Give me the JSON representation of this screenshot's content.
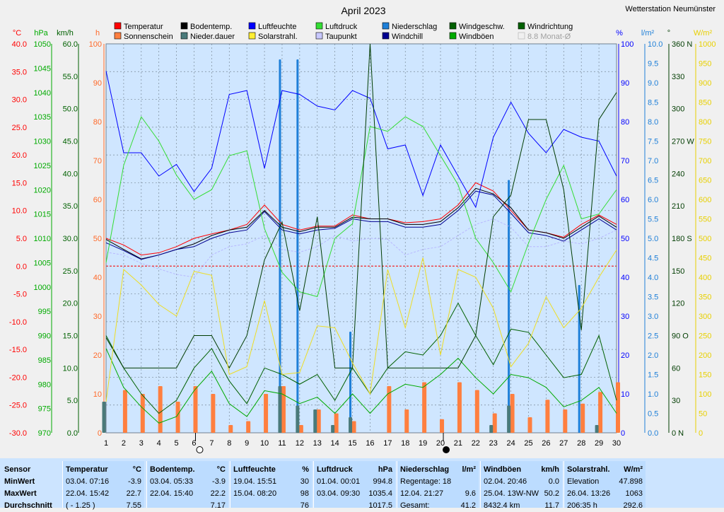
{
  "chart_data": {
    "type": "line",
    "title": "April 2023",
    "station": "Wetterstation Neumünster",
    "x": [
      1,
      2,
      3,
      4,
      5,
      6,
      7,
      8,
      9,
      10,
      11,
      12,
      13,
      14,
      15,
      16,
      17,
      18,
      19,
      20,
      21,
      22,
      23,
      24,
      25,
      26,
      27,
      28,
      29,
      30
    ],
    "xlim": [
      1,
      30
    ],
    "axes": {
      "temperature": {
        "label": "°C",
        "ticks": [
          "40.0",
          "35.0",
          "30.0",
          "25.0",
          "20.0",
          "15.0",
          "10.0",
          "5.0",
          "0.0",
          "-5.0",
          "-10.0",
          "-15.0",
          "-20.0",
          "-25.0",
          "-30.0"
        ],
        "range": [
          -30,
          40
        ],
        "color": "#ff0000"
      },
      "pressure": {
        "label": "hPa",
        "ticks": [
          "1050",
          "1045",
          "1040",
          "1035",
          "1030",
          "1025",
          "1020",
          "1015",
          "1010",
          "1005",
          "1000",
          "995",
          "990",
          "985",
          "980",
          "975",
          "970"
        ],
        "range": [
          970,
          1050
        ],
        "color": "#00aa00"
      },
      "wind": {
        "label": "km/h",
        "ticks": [
          "60.0",
          "55.0",
          "50.0",
          "45.0",
          "40.0",
          "35.0",
          "30.0",
          "25.0",
          "20.0",
          "15.0",
          "10.0",
          "5.0",
          "0.0"
        ],
        "range": [
          0,
          60
        ],
        "color": "#006000"
      },
      "sunshine": {
        "label": "h",
        "ticks": [
          "100",
          "90",
          "80",
          "70",
          "60",
          "50",
          "40",
          "30",
          "20",
          "10",
          "0"
        ],
        "range": [
          0,
          100
        ],
        "color": "#ff6a2a"
      },
      "humidity": {
        "label": "%",
        "ticks": [
          "100",
          "90",
          "80",
          "70",
          "60",
          "50",
          "40",
          "30",
          "20",
          "10",
          "0"
        ],
        "range": [
          0,
          100
        ],
        "color": "#0000ff"
      },
      "precip": {
        "label": "l/m²",
        "ticks": [
          "10.0",
          "9.5",
          "9.0",
          "8.5",
          "8.0",
          "7.5",
          "7.0",
          "6.5",
          "6.0",
          "5.5",
          "5.0",
          "4.5",
          "4.0",
          "3.5",
          "3.0",
          "2.5",
          "2.0",
          "1.5",
          "1.0",
          "0.5",
          "0.0"
        ],
        "range": [
          0,
          10
        ],
        "color": "#1e7fd8"
      },
      "direction": {
        "label": "°",
        "ticks": [
          "360 N",
          "330",
          "300",
          "270 W",
          "240",
          "210",
          "180 S",
          "150",
          "120",
          "90  O",
          "60",
          "30",
          "0   N"
        ],
        "range": [
          0,
          360
        ],
        "color": "#003c00"
      },
      "solar": {
        "label": "W/m²",
        "ticks": [
          "1000",
          "950",
          "900",
          "850",
          "800",
          "750",
          "700",
          "650",
          "600",
          "550",
          "500",
          "450",
          "400",
          "350",
          "300",
          "250",
          "200",
          "150",
          "100",
          "50",
          "0"
        ],
        "range": [
          0,
          1000
        ],
        "color": "#e8d000"
      }
    },
    "legend": [
      {
        "name": "Temperatur",
        "color": "#ff0000"
      },
      {
        "name": "Bodentemp.",
        "color": "#000000"
      },
      {
        "name": "Luftfeuchte",
        "color": "#0000ff"
      },
      {
        "name": "Luftdruck",
        "color": "#33dd33"
      },
      {
        "name": "Niederschlag",
        "color": "#1e7fd8"
      },
      {
        "name": "Windgeschw.",
        "color": "#006000"
      },
      {
        "name": "Windrichtung",
        "color": "#006000"
      },
      {
        "name": "Sonnenschein",
        "color": "#ff7f3f"
      },
      {
        "name": "Nieder.dauer",
        "color": "#4a7a7a"
      },
      {
        "name": "Solarstrahl.",
        "color": "#ffee33"
      },
      {
        "name": "Taupunkt",
        "color": "#c8c8ff"
      },
      {
        "name": "Windchill",
        "color": "#000090"
      },
      {
        "name": "Windböen",
        "color": "#00aa00"
      },
      {
        "name": "8.8 Monat-Ø",
        "color": "#b0b0b0"
      }
    ],
    "moon_phases": [
      {
        "day": 6,
        "phase": "full"
      },
      {
        "day": 20,
        "phase": "new"
      }
    ],
    "series": [
      {
        "name": "Temperatur",
        "axis": "temperature",
        "color": "#ff0000",
        "values": [
          5.0,
          3.8,
          2.0,
          2.4,
          3.5,
          5.0,
          5.8,
          6.5,
          7.5,
          11.0,
          7.5,
          6.5,
          7.2,
          7.2,
          9.2,
          8.5,
          8.5,
          7.8,
          8.0,
          8.5,
          11.0,
          15.0,
          13.5,
          10.0,
          6.5,
          6.0,
          5.2,
          7.5,
          9.2,
          7.5
        ]
      },
      {
        "name": "Bodentemp.",
        "axis": "temperature",
        "color": "#000000",
        "values": [
          4.8,
          3.0,
          1.3,
          2.0,
          3.0,
          4.0,
          5.5,
          6.5,
          7.0,
          10.0,
          7.0,
          6.2,
          7.0,
          7.0,
          8.8,
          8.5,
          8.5,
          7.5,
          7.5,
          8.0,
          10.5,
          14.0,
          13.0,
          10.5,
          6.5,
          6.0,
          5.0,
          7.0,
          9.0,
          7.0
        ]
      },
      {
        "name": "Windchill",
        "axis": "temperature",
        "color": "#000090",
        "values": [
          4.2,
          2.8,
          1.2,
          2.0,
          3.0,
          3.5,
          5.0,
          6.0,
          6.5,
          9.8,
          6.5,
          5.8,
          6.5,
          6.8,
          8.5,
          8.0,
          8.0,
          7.0,
          7.0,
          7.5,
          10.0,
          13.5,
          12.8,
          9.5,
          6.0,
          5.5,
          4.5,
          6.5,
          8.5,
          6.5
        ]
      },
      {
        "name": "Taupunkt",
        "axis": "temperature",
        "color": "#b8b8ff",
        "values": [
          2.5,
          2.0,
          0.5,
          -0.5,
          -1.5,
          -2.0,
          2.0,
          3.5,
          4.0,
          5.5,
          3.0,
          2.5,
          3.5,
          5.5,
          4.5,
          5.0,
          4.8,
          2.0,
          3.0,
          3.5,
          5.5,
          7.5,
          8.5,
          7.0,
          3.5,
          3.5,
          4.5,
          4.0,
          5.0,
          6.5
        ]
      },
      {
        "name": "Luftfeuchte",
        "axis": "humidity",
        "color": "#0000ff",
        "values": [
          93,
          72,
          72,
          66,
          69,
          62,
          68,
          87,
          88,
          68,
          88,
          87,
          84,
          83,
          88,
          86,
          73,
          74,
          61,
          74,
          66,
          58,
          76,
          85,
          77,
          72,
          78,
          76,
          75,
          66
        ]
      },
      {
        "name": "Luftdruck",
        "axis": "pressure",
        "color": "#33dd33",
        "values": [
          1005,
          1025,
          1035,
          1030,
          1023,
          1018,
          1020,
          1027,
          1028,
          1012,
          1003,
          999,
          998,
          1010,
          1013,
          1033,
          1032,
          1035,
          1033,
          1027,
          1021,
          1010,
          1005,
          999,
          1009,
          1018,
          1025,
          1014,
          1015,
          1020
        ]
      },
      {
        "name": "Windböen",
        "axis": "wind",
        "color": "#006000",
        "values": [
          15.0,
          10.0,
          6.0,
          3.0,
          5.0,
          10.0,
          13.0,
          8.0,
          4.5,
          10.0,
          9.0,
          7.5,
          9.0,
          5.0,
          10.0,
          6.0,
          10.0,
          12.5,
          12.0,
          15.0,
          20.0,
          15.0,
          10.5,
          16.0,
          15.5,
          12.0,
          8.5,
          9.0,
          15.0,
          5.0
        ]
      },
      {
        "name": "Windgeschw.",
        "axis": "wind",
        "color": "#00aa00",
        "values": [
          13.0,
          7.0,
          4.0,
          1.5,
          2.5,
          6.5,
          9.5,
          4.5,
          2.5,
          6.5,
          6.0,
          4.5,
          5.5,
          3.0,
          6.0,
          3.0,
          6.0,
          7.5,
          7.0,
          9.0,
          11.5,
          8.5,
          6.0,
          9.0,
          8.5,
          7.0,
          4.0,
          5.0,
          7.0,
          3.0
        ]
      },
      {
        "name": "Windrichtung",
        "axis": "direction",
        "color": "#003c00",
        "values": [
          88,
          60,
          60,
          60,
          60,
          90,
          90,
          60,
          90,
          160,
          195,
          113,
          200,
          60,
          60,
          360,
          60,
          60,
          60,
          60,
          60,
          90,
          200,
          220,
          290,
          290,
          225,
          95,
          290,
          315
        ]
      },
      {
        "name": "Solarstrahl.",
        "axis": "solar",
        "color": "#eedd22",
        "values": [
          80,
          420,
          380,
          330,
          300,
          415,
          405,
          150,
          170,
          340,
          150,
          155,
          275,
          270,
          180,
          100,
          420,
          270,
          450,
          200,
          420,
          400,
          320,
          170,
          230,
          350,
          270,
          320,
          400,
          470
        ]
      },
      {
        "name": "Sonnenschein",
        "axis": "sunshine",
        "color": "#ff7f3f",
        "type": "bar",
        "values": [
          0,
          11,
          10,
          12,
          8,
          12,
          10,
          2,
          3,
          10,
          12,
          2,
          6,
          5,
          3,
          0,
          12,
          6,
          13,
          3.5,
          13,
          11,
          5,
          10,
          4,
          8.5,
          6,
          7.5,
          10.5,
          13
        ]
      },
      {
        "name": "Niederschlag",
        "axis": "precip",
        "color": "#1e7fd8",
        "type": "bar",
        "values": [
          0,
          0,
          0,
          0,
          0,
          0,
          0,
          0,
          0,
          0,
          9.6,
          9.6,
          0,
          0,
          2.6,
          0,
          0,
          0,
          0,
          0,
          0,
          0,
          0,
          6.5,
          0,
          0,
          0,
          3.8,
          0,
          0
        ]
      },
      {
        "name": "Nieder.dauer",
        "axis": "precip",
        "color": "#4a7a7a",
        "type": "bar",
        "values": [
          0.8,
          0,
          0,
          0,
          0,
          0,
          0,
          0,
          0,
          0,
          1.2,
          0.7,
          0.6,
          0.2,
          0.4,
          0,
          0,
          0,
          0,
          0,
          0,
          0,
          0.2,
          0.7,
          0,
          0,
          0,
          0,
          0.2,
          0
        ]
      }
    ]
  },
  "stats": {
    "row_labels": {
      "sensor": "Sensor",
      "min": "MinWert",
      "max": "MaxWert",
      "avg": "Durchschnitt"
    },
    "boxes": [
      {
        "title": "Temperatur",
        "unit": "°C",
        "rows": [
          [
            "03.04.  07:16",
            "-3.9"
          ],
          [
            "22.04.  15:42",
            "22.7"
          ],
          [
            "( - 1.25 )",
            "7.55"
          ]
        ]
      },
      {
        "title": "Bodentemp.",
        "unit": "°C",
        "rows": [
          [
            "03.04.  05:33",
            "-3.9"
          ],
          [
            "22.04.  15:40",
            "22.2"
          ],
          [
            "",
            "7.17"
          ]
        ]
      },
      {
        "title": "Luftfeuchte",
        "unit": "%",
        "rows": [
          [
            "19.04.  15:51",
            "30"
          ],
          [
            "15.04.  08:20",
            "98"
          ],
          [
            "",
            "76"
          ]
        ]
      },
      {
        "title": "Luftdruck",
        "unit": "hPa",
        "rows": [
          [
            "01.04.  00:01",
            "994.8"
          ],
          [
            "03.04.  09:30",
            "1035.4"
          ],
          [
            "",
            "1017.5"
          ]
        ]
      },
      {
        "title": "Niederschlag",
        "unit": "l/m²",
        "rows": [
          [
            "Regentage: 18",
            ""
          ],
          [
            "12.04.  21:27",
            "9.6"
          ],
          [
            "Gesamt:",
            "41.2"
          ]
        ]
      },
      {
        "title": "Windböen",
        "unit": "km/h",
        "rows": [
          [
            "02.04.  20:46",
            "0.0"
          ],
          [
            "25.04.  13W-NW",
            "50.2"
          ],
          [
            "8432.4 km",
            "11.7"
          ]
        ]
      },
      {
        "title": "Solarstrahl.",
        "unit": "W/m²",
        "rows": [
          [
            "Elevation",
            "47.898"
          ],
          [
            "26.04.  13:26",
            "1063"
          ],
          [
            "206:35 h",
            "292.6"
          ]
        ]
      }
    ]
  }
}
